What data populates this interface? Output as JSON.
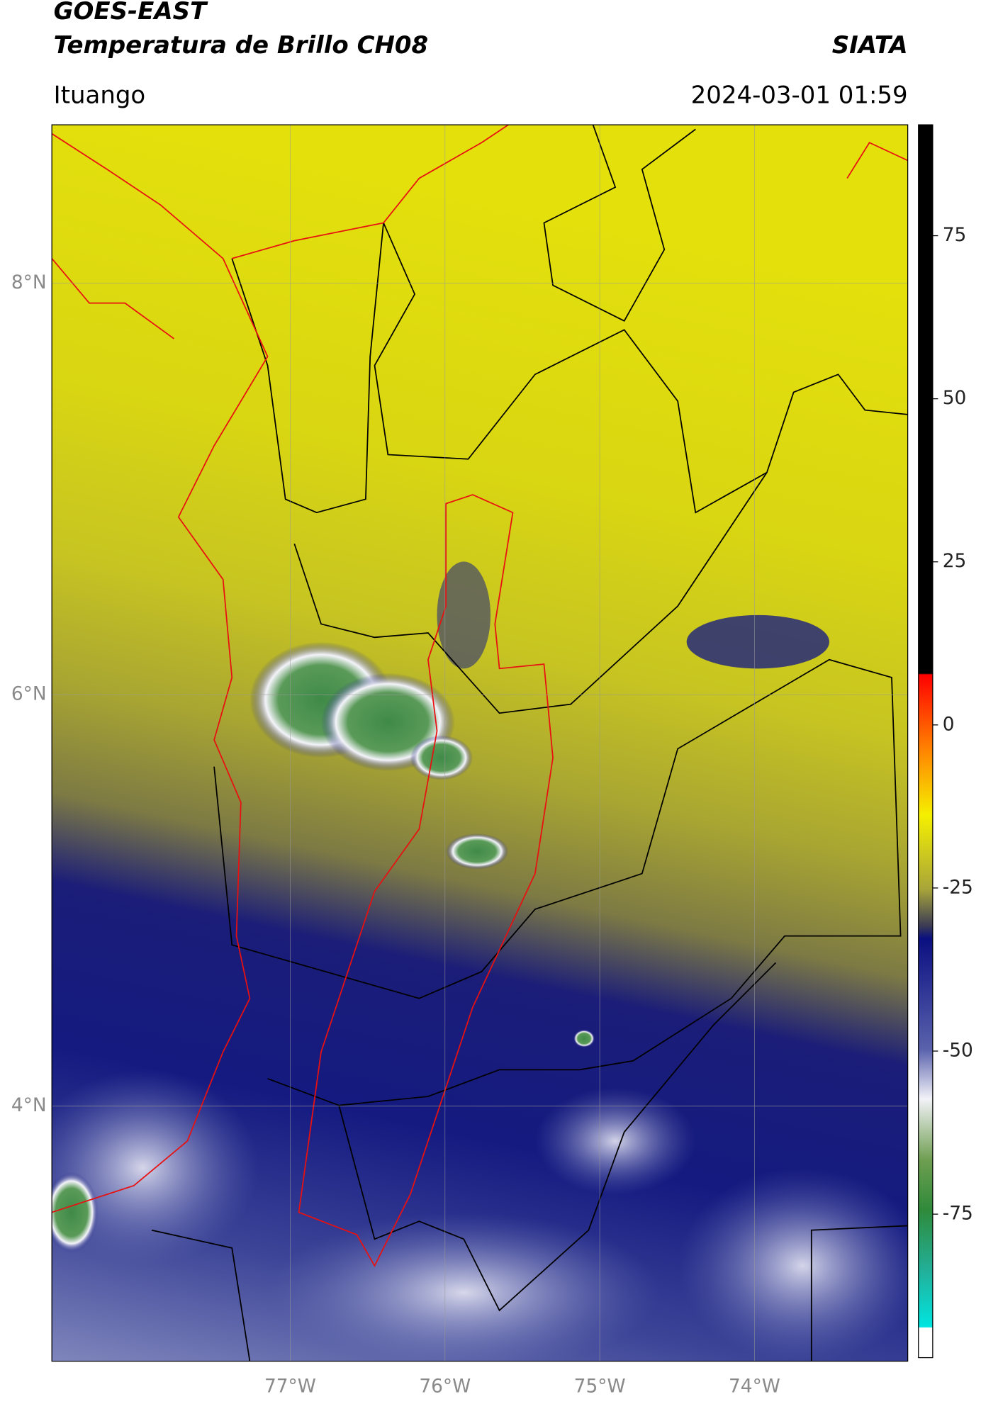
{
  "header": {
    "title": "GOES-EAST",
    "subtitle": "Temperatura de Brillo CH08",
    "brand": "SIATA",
    "region": "Ituango",
    "datetime": "2024-03-01 01:59"
  },
  "map": {
    "xlim": [
      -78.54,
      -73.01
    ],
    "ylim": [
      2.76,
      8.77
    ],
    "xticks": [
      {
        "value": -77,
        "label": "77°W"
      },
      {
        "value": -76,
        "label": "76°W"
      },
      {
        "value": -75,
        "label": "75°W"
      },
      {
        "value": -74,
        "label": "74°W"
      }
    ],
    "yticks": [
      {
        "value": 8,
        "label": "8°N"
      },
      {
        "value": 6,
        "label": "6°N"
      },
      {
        "value": 4,
        "label": "4°N"
      }
    ],
    "grid": true
  },
  "colorbar": {
    "lim": [
      -97,
      92
    ],
    "ticks": [
      75,
      50,
      25,
      0,
      -25,
      -50,
      -75
    ]
  }
}
